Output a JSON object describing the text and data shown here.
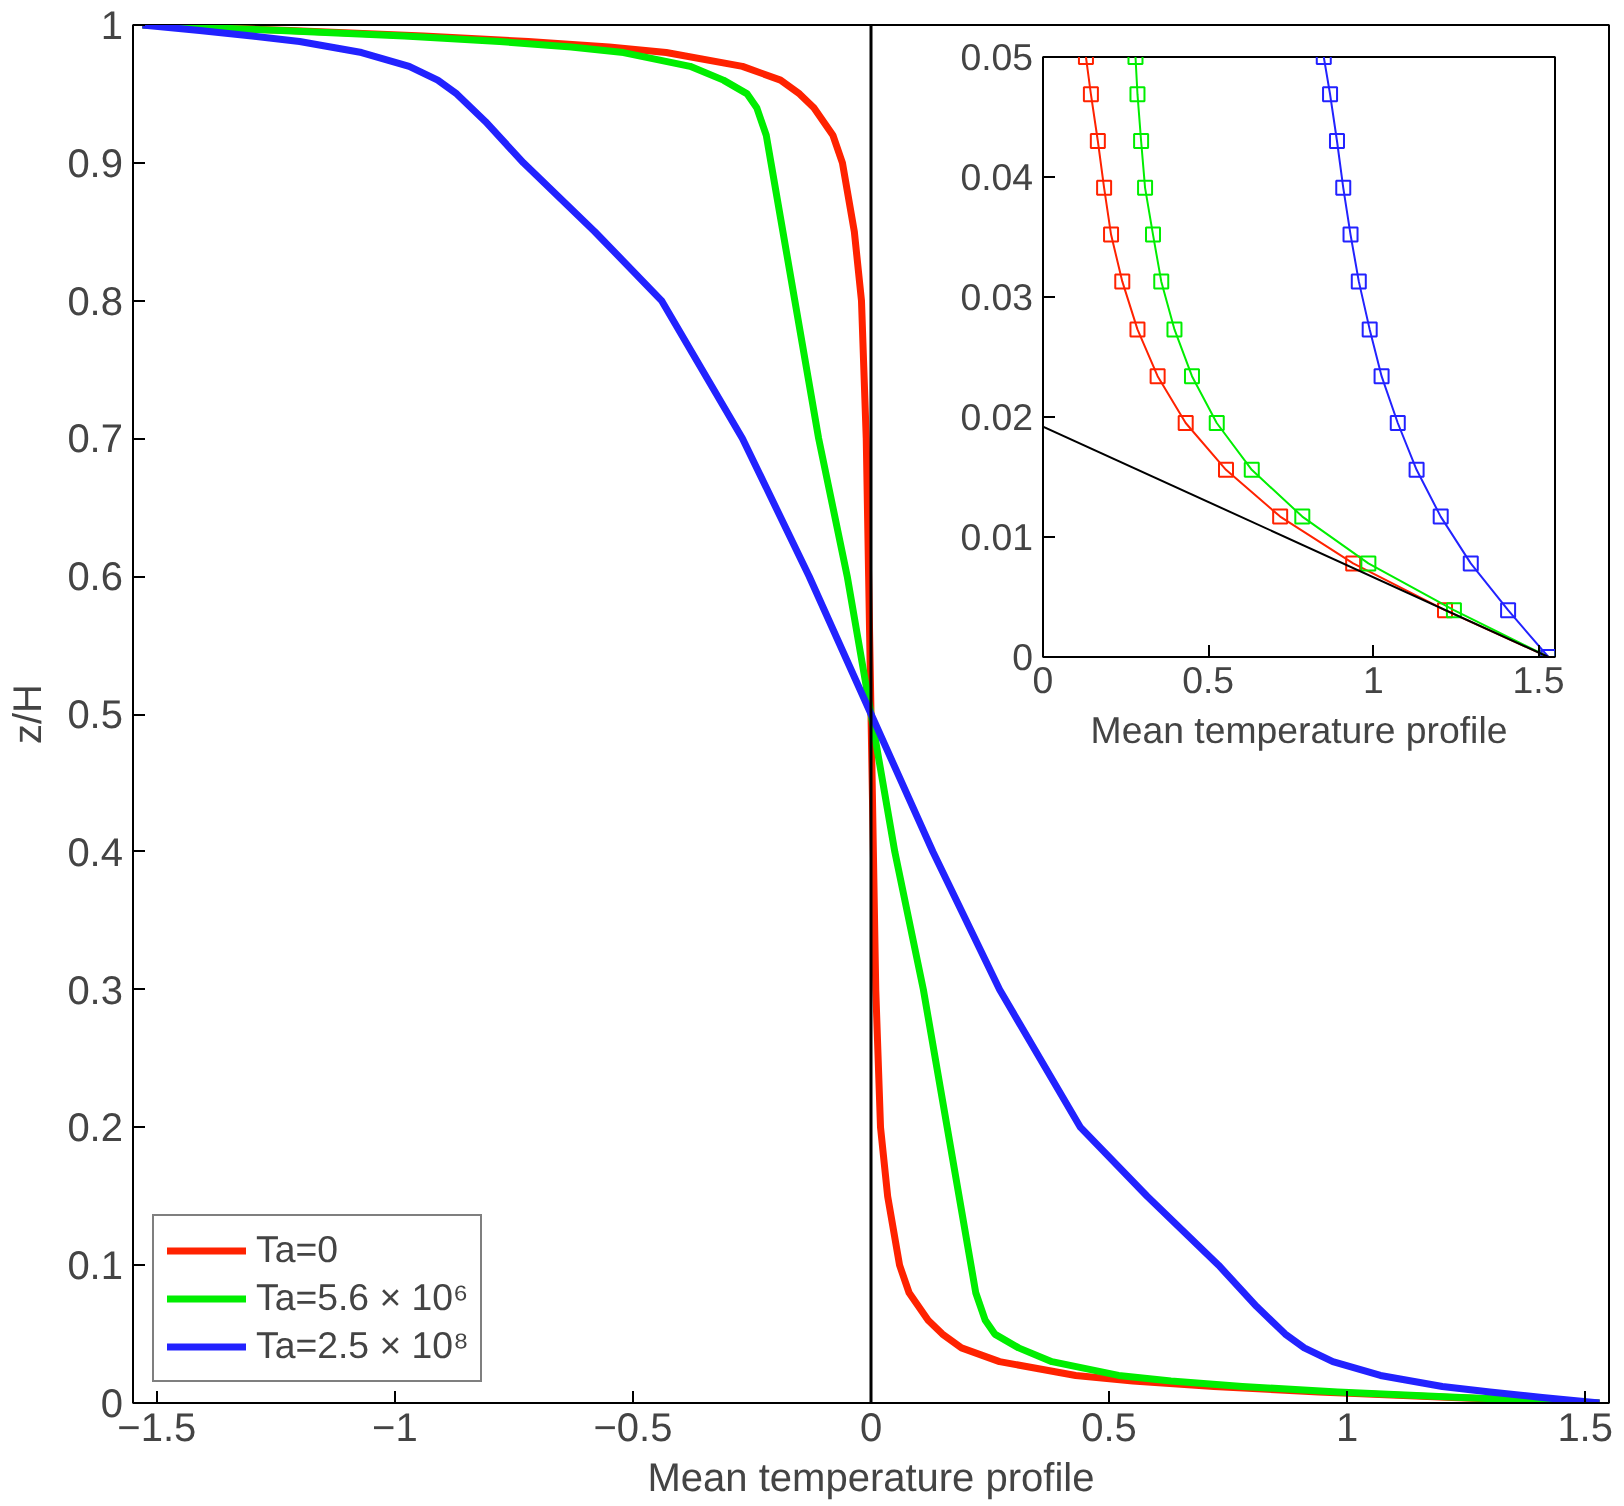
{
  "chart_data": [
    {
      "type": "line",
      "xlabel": "Mean temperature profile",
      "ylabel": "z/H",
      "legend": "bottom left",
      "grid": false,
      "line_style": "solid",
      "marker": "none",
      "xlim": [
        -1.55,
        1.55
      ],
      "ylim": [
        0,
        1
      ],
      "xticks": [
        {
          "value": -1.5,
          "label": "−1.5"
        },
        {
          "value": -1,
          "label": "−1"
        },
        {
          "value": -0.5,
          "label": "−0.5"
        },
        0,
        0.5,
        1,
        1.5
      ],
      "yticks": [
        0,
        0.1,
        0.2,
        0.3,
        0.4,
        0.5,
        0.6,
        0.7,
        0.8,
        0.9,
        1
      ],
      "ref_lines": [
        {
          "axis": "x",
          "value": 0,
          "color": "#000000"
        }
      ],
      "series": [
        {
          "name": "Ta=0",
          "color": "#ff2200",
          "x": [
            1.53,
            1.22,
            0.94,
            0.72,
            0.55,
            0.43,
            0.27,
            0.19,
            0.15,
            0.12,
            0.08,
            0.06,
            0.035,
            0.02,
            0.01,
            0.005,
            0,
            -0.005,
            -0.01,
            -0.02,
            -0.035,
            -0.06,
            -0.08,
            -0.12,
            -0.15,
            -0.19,
            -0.27,
            -0.43,
            -0.55,
            -0.72,
            -0.94,
            -1.22,
            -1.53
          ],
          "values": [
            0,
            0.004,
            0.008,
            0.012,
            0.016,
            0.02,
            0.03,
            0.04,
            0.05,
            0.06,
            0.08,
            0.1,
            0.15,
            0.2,
            0.3,
            0.4,
            0.5,
            0.6,
            0.7,
            0.8,
            0.85,
            0.9,
            0.92,
            0.94,
            0.95,
            0.96,
            0.97,
            0.98,
            0.984,
            0.988,
            0.992,
            0.996,
            1
          ]
        },
        {
          "name": "Ta=5.6 × 10⁶",
          "color": "#00ee00",
          "x": [
            1.53,
            1.24,
            0.98,
            0.78,
            0.63,
            0.52,
            0.38,
            0.31,
            0.26,
            0.24,
            0.22,
            0.21,
            0.16,
            0.11,
            0.05,
            0,
            -0.05,
            -0.11,
            -0.16,
            -0.21,
            -0.22,
            -0.24,
            -0.26,
            -0.31,
            -0.38,
            -0.52,
            -0.63,
            -0.78,
            -0.98,
            -1.24,
            -1.53
          ],
          "values": [
            0,
            0.004,
            0.008,
            0.012,
            0.016,
            0.02,
            0.03,
            0.04,
            0.05,
            0.06,
            0.08,
            0.1,
            0.2,
            0.3,
            0.4,
            0.5,
            0.6,
            0.7,
            0.8,
            0.9,
            0.92,
            0.94,
            0.95,
            0.96,
            0.97,
            0.98,
            0.984,
            0.988,
            0.992,
            0.996,
            1
          ]
        },
        {
          "name": "Ta=2.5 × 10⁸",
          "color": "#2222ff",
          "x": [
            1.53,
            1.41,
            1.3,
            1.2,
            1.07,
            0.97,
            0.91,
            0.87,
            0.81,
            0.73,
            0.58,
            0.44,
            0.27,
            0.13,
            0,
            -0.13,
            -0.27,
            -0.44,
            -0.58,
            -0.73,
            -0.81,
            -0.87,
            -0.91,
            -0.97,
            -1.07,
            -1.2,
            -1.3,
            -1.41,
            -1.53
          ],
          "values": [
            0,
            0.004,
            0.008,
            0.012,
            0.02,
            0.03,
            0.04,
            0.05,
            0.07,
            0.1,
            0.15,
            0.2,
            0.3,
            0.4,
            0.5,
            0.6,
            0.7,
            0.8,
            0.85,
            0.9,
            0.93,
            0.95,
            0.96,
            0.97,
            0.98,
            0.988,
            0.992,
            0.996,
            1
          ]
        }
      ]
    },
    {
      "type": "line",
      "xlabel": "Mean temperature profile",
      "grid": false,
      "legend": false,
      "line_style": "solid",
      "marker": "square",
      "xlim": [
        0,
        1.55
      ],
      "ylim": [
        0,
        0.05
      ],
      "xticks": [
        0,
        0.5,
        1,
        1.5
      ],
      "yticks": [
        0,
        0.01,
        0.02,
        0.03,
        0.04,
        0.05
      ],
      "series": [
        {
          "color": "#ff2200",
          "x": [
            1.53,
            1.217,
            0.939,
            0.718,
            0.554,
            0.432,
            0.347,
            0.286,
            0.24,
            0.206,
            0.185,
            0.166,
            0.145,
            0.13
          ],
          "values": [
            0,
            0.0039,
            0.0078,
            0.0117,
            0.0156,
            0.0195,
            0.0234,
            0.0273,
            0.0313,
            0.0352,
            0.0391,
            0.043,
            0.0469,
            0.05
          ]
        },
        {
          "color": "#00ee00",
          "x": [
            1.53,
            1.244,
            0.985,
            0.785,
            0.632,
            0.526,
            0.451,
            0.398,
            0.358,
            0.333,
            0.309,
            0.297,
            0.286,
            0.28
          ],
          "values": [
            0,
            0.0039,
            0.0078,
            0.0117,
            0.0156,
            0.0195,
            0.0234,
            0.0273,
            0.0313,
            0.0352,
            0.0391,
            0.043,
            0.0469,
            0.05
          ]
        },
        {
          "color": "#2222ff",
          "x": [
            1.53,
            1.408,
            1.295,
            1.204,
            1.131,
            1.074,
            1.025,
            0.989,
            0.956,
            0.931,
            0.909,
            0.89,
            0.869,
            0.85
          ],
          "values": [
            0,
            0.0039,
            0.0078,
            0.0117,
            0.0156,
            0.0195,
            0.0234,
            0.0273,
            0.0313,
            0.0352,
            0.0391,
            0.043,
            0.0469,
            0.05
          ]
        },
        {
          "type": "line",
          "marker": "none",
          "color": "#000000",
          "x": [
            0,
            1.53
          ],
          "values": [
            0.0192,
            0
          ]
        }
      ]
    }
  ]
}
